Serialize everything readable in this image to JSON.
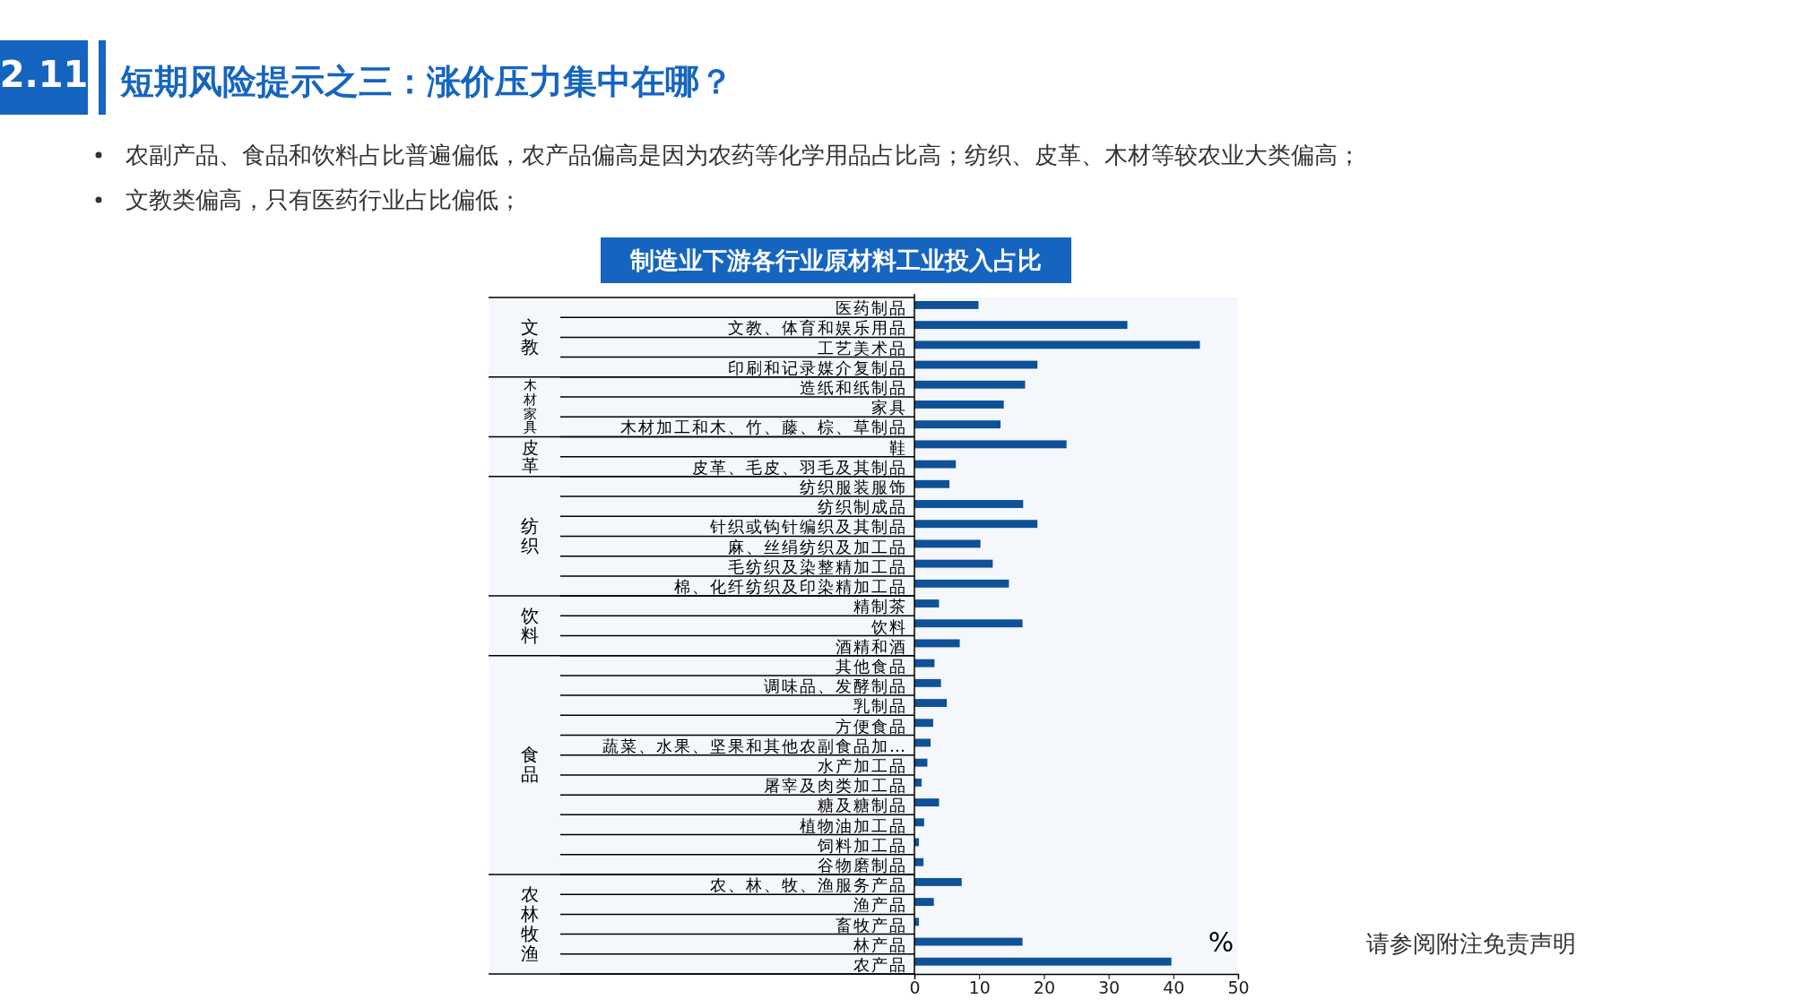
{
  "chart_data": {
    "type": "bar",
    "orientation": "horizontal",
    "title": "短期风险提示之三：涨价压力集中在哪？",
    "subtitle": "制造业下游各行业原材料工业投入占比",
    "xlabel": "%",
    "annotations": [
      "2.11",
      "农副产品、食品和饮料占比普遍偏低，农产品偏高是因为农药等化学用品占比高；纺织、皮革、木材等较农业大类偏高；",
      "文教类偏高，只有医药行业占比偏低；",
      "请参阅附注免责声明"
    ],
    "categories": [
      "医药制品",
      "文教、体育和娱乐用品",
      "工艺美术品",
      "印刷和记录媒介复制品",
      "造纸和纸制品",
      "家具",
      "木材加工和木、竹、藤、棕、草制品",
      "鞋",
      "皮革、毛皮、羽毛及其制品",
      "纺织服装服饰",
      "纺织制成品",
      "针织或钩针编织及其制品",
      "麻、丝绢纺织及加工品",
      "毛纺织及染整精加工品",
      "棉、化纤纺织及印染精加工品",
      "精制茶",
      "饮料",
      "酒精和酒",
      "其他食品",
      "调味品、发酵制品",
      "乳制品",
      "方便食品",
      "蔬菜、水果、坚果和其他农副食品加…",
      "水产加工品",
      "屠宰及肉类加工品",
      "糖及糖制品",
      "植物油加工品",
      "饲料加工品",
      "谷物磨制品",
      "农、林、牧、渔服务产品",
      "渔产品",
      "畜牧产品",
      "林产品",
      "农产品"
    ],
    "values": [
      9.9,
      32.9,
      44.1,
      19.0,
      17.1,
      13.8,
      13.3,
      23.5,
      6.4,
      5.4,
      16.8,
      19.0,
      10.2,
      12.1,
      14.6,
      3.8,
      16.7,
      7.0,
      3.1,
      4.1,
      5.0,
      2.9,
      2.5,
      2.0,
      1.1,
      3.8,
      1.5,
      0.7,
      1.4,
      7.3,
      3.0,
      0.7,
      16.7,
      39.7
    ],
    "color": "#0f5197",
    "xlim": [
      0,
      50
    ],
    "xticks": [
      0,
      10,
      20,
      30,
      40,
      50
    ],
    "bands": [
      {
        "axis": "y",
        "from": "医药制品",
        "to": "印刷和记录媒介复制品",
        "label": "文教",
        "color": "#f4f7fb"
      },
      {
        "axis": "y",
        "from": "造纸和纸制品",
        "to": "木材加工和木、竹、藤、棕、草制品",
        "label": "木材家具",
        "color": "#f4f7fb"
      },
      {
        "axis": "y",
        "from": "鞋",
        "to": "皮革、毛皮、羽毛及其制品",
        "label": "皮革",
        "color": "#f4f7fb"
      },
      {
        "axis": "y",
        "from": "纺织服装服饰",
        "to": "棉、化纤纺织及印染精加工品",
        "label": "纺织",
        "color": "#f4f7fb"
      },
      {
        "axis": "y",
        "from": "精制茶",
        "to": "酒精和酒",
        "label": "饮料",
        "color": "#f4f7fb"
      },
      {
        "axis": "y",
        "from": "其他食品",
        "to": "谷物磨制品",
        "label": "食品",
        "color": "#f4f7fb"
      },
      {
        "axis": "y",
        "from": "农、林、牧、渔服务产品",
        "to": "农产品",
        "label": "农林牧渔",
        "color": "#f4f7fb"
      }
    ]
  }
}
